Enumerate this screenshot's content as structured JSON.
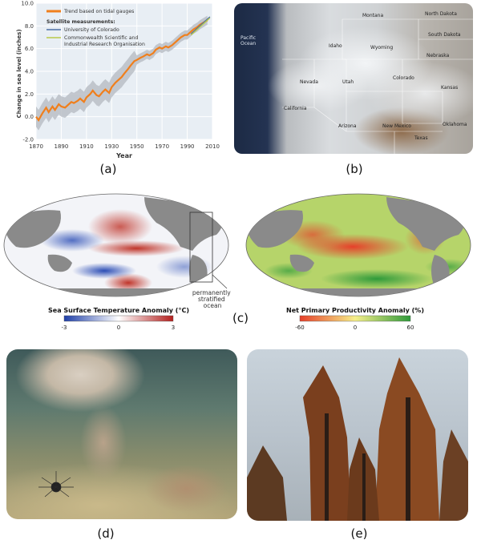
{
  "chart_data": {
    "type": "line",
    "title": "",
    "xlabel": "Year",
    "ylabel": "Change in sea level (inches)",
    "xlim": [
      1870,
      2010
    ],
    "ylim": [
      -2.0,
      10.0
    ],
    "x_ticks": [
      "1870",
      "1890",
      "1910",
      "1930",
      "1950",
      "1970",
      "1990",
      "2010"
    ],
    "y_ticks": [
      "-2.0",
      "0.0",
      "2.0",
      "4.0",
      "6.0",
      "8.0",
      "10.0"
    ],
    "grid": true,
    "legend_position": "top-left",
    "series": [
      {
        "name": "Trend based on tidal gauges",
        "color": "#f07f1c",
        "x": [
          1870,
          1872,
          1875,
          1878,
          1880,
          1883,
          1885,
          1888,
          1890,
          1893,
          1895,
          1898,
          1900,
          1903,
          1905,
          1908,
          1910,
          1913,
          1915,
          1918,
          1920,
          1923,
          1925,
          1928,
          1930,
          1933,
          1935,
          1938,
          1940,
          1943,
          1945,
          1948,
          1950,
          1953,
          1955,
          1958,
          1960,
          1963,
          1965,
          1968,
          1970,
          1973,
          1975,
          1978,
          1980,
          1983,
          1985,
          1988,
          1990,
          1993,
          1995,
          1998,
          2000,
          2003,
          2006
        ],
        "y": [
          0.0,
          -0.3,
          0.3,
          0.8,
          0.4,
          0.9,
          0.6,
          1.1,
          0.9,
          0.8,
          1.0,
          1.3,
          1.2,
          1.4,
          1.6,
          1.3,
          1.7,
          2.0,
          2.3,
          1.9,
          1.8,
          2.2,
          2.4,
          2.1,
          2.6,
          3.0,
          3.2,
          3.5,
          3.8,
          4.2,
          4.5,
          4.9,
          5.0,
          5.2,
          5.3,
          5.5,
          5.4,
          5.6,
          5.9,
          6.1,
          6.0,
          6.2,
          6.1,
          6.3,
          6.5,
          6.8,
          7.0,
          7.2,
          7.2,
          7.5,
          7.7,
          7.9,
          8.1,
          8.3,
          8.5
        ]
      },
      {
        "name": "University of Colorado",
        "color": "#4a6fa5",
        "x": [
          1993,
          1996,
          1999,
          2002,
          2005,
          2008
        ],
        "y": [
          7.3,
          7.6,
          7.9,
          8.2,
          8.5,
          8.8
        ]
      },
      {
        "name": "Commonwealth Scientific and Industrial Research Organisation",
        "color": "#b8c94a",
        "x": [
          1993,
          1996,
          1999,
          2002,
          2005,
          2008
        ],
        "y": [
          7.2,
          7.5,
          7.8,
          8.1,
          8.4,
          8.7
        ]
      }
    ],
    "legend_heading": "Satellite measurements:"
  },
  "panels": {
    "a": "(a)",
    "b": "(b)",
    "c": "(c)",
    "d": "(d)",
    "e": "(e)"
  },
  "map_b": {
    "labels": [
      "Montana",
      "North Dakota",
      "South Dakota",
      "Wyoming",
      "Nebraska",
      "Idaho",
      "Nevada",
      "Utah",
      "Colorado",
      "Kansas",
      "California",
      "Arizona",
      "New Mexico",
      "Oklahoma",
      "Texas",
      "Pacific Ocean"
    ]
  },
  "map_sst": {
    "title": "Sea Surface Temperature Anomaly (°C)",
    "scale_min": "-3",
    "scale_mid": "0",
    "scale_max": "3",
    "annotation": "permanently stratified ocean",
    "colors": {
      "cold": "#1f3fa8",
      "neutral": "#ffffff",
      "warm": "#b3201e"
    }
  },
  "map_npp": {
    "title": "Net Primary Productivity Anomaly (%)",
    "scale_min": "-60",
    "scale_mid": "0",
    "scale_max": "60",
    "colors": {
      "low": "#e6402a",
      "mid": "#f6ef8a",
      "high": "#2e9a3a"
    }
  }
}
